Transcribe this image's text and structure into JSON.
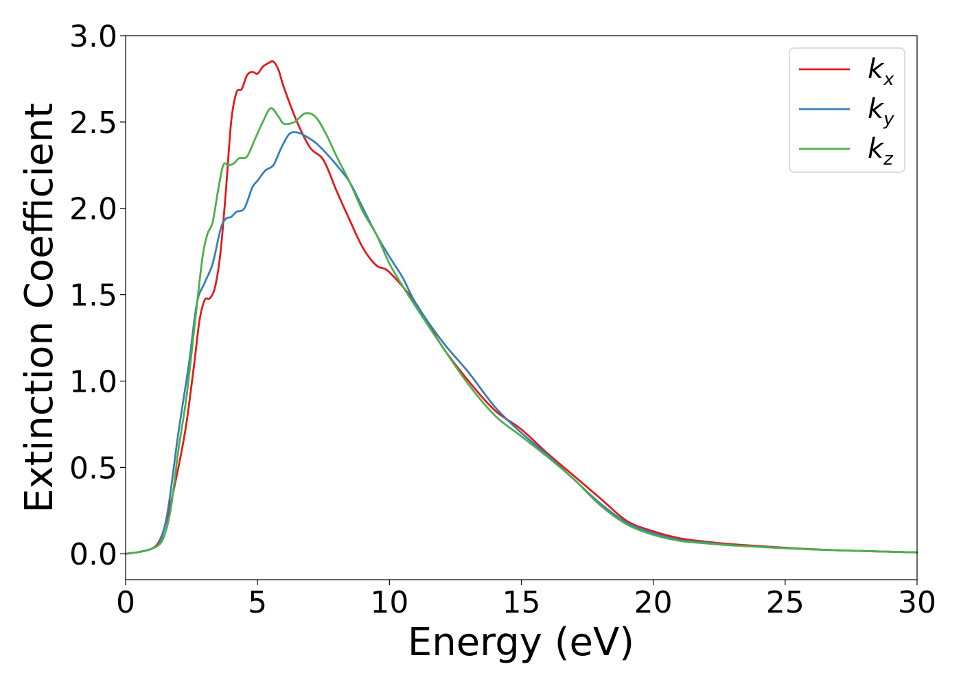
{
  "chart_data": {
    "type": "line",
    "xlabel": "Energy (eV)",
    "ylabel": "Extinction Coefficient",
    "xlim": [
      0,
      30
    ],
    "ylim": [
      -0.15,
      3.0
    ],
    "xticks": [
      "0",
      "5",
      "10",
      "15",
      "20",
      "25",
      "30"
    ],
    "yticks": [
      "0.0",
      "0.5",
      "1.0",
      "1.5",
      "2.0",
      "2.5",
      "3.0"
    ],
    "grid": false,
    "legend_position": "top-right",
    "series": [
      {
        "name": "k_x",
        "legend_base": "k",
        "legend_sub": "x",
        "color": "#e41a1c",
        "points": [
          [
            0,
            0
          ],
          [
            0.5,
            0.01
          ],
          [
            1.0,
            0.03
          ],
          [
            1.3,
            0.08
          ],
          [
            1.6,
            0.22
          ],
          [
            2.0,
            0.5
          ],
          [
            2.3,
            0.75
          ],
          [
            2.6,
            1.1
          ],
          [
            2.8,
            1.35
          ],
          [
            3.0,
            1.47
          ],
          [
            3.2,
            1.48
          ],
          [
            3.4,
            1.55
          ],
          [
            3.6,
            1.75
          ],
          [
            3.8,
            2.1
          ],
          [
            4.0,
            2.5
          ],
          [
            4.2,
            2.67
          ],
          [
            4.4,
            2.69
          ],
          [
            4.6,
            2.77
          ],
          [
            4.8,
            2.79
          ],
          [
            5.0,
            2.78
          ],
          [
            5.2,
            2.82
          ],
          [
            5.4,
            2.84
          ],
          [
            5.6,
            2.85
          ],
          [
            5.8,
            2.8
          ],
          [
            6.0,
            2.7
          ],
          [
            6.5,
            2.5
          ],
          [
            7.0,
            2.35
          ],
          [
            7.5,
            2.28
          ],
          [
            8.0,
            2.1
          ],
          [
            8.5,
            1.93
          ],
          [
            9.0,
            1.77
          ],
          [
            9.5,
            1.67
          ],
          [
            10.0,
            1.63
          ],
          [
            11.0,
            1.45
          ],
          [
            12.0,
            1.2
          ],
          [
            13.0,
            1.0
          ],
          [
            14.0,
            0.83
          ],
          [
            15.0,
            0.72
          ],
          [
            16.0,
            0.58
          ],
          [
            17.0,
            0.45
          ],
          [
            18.0,
            0.32
          ],
          [
            19.0,
            0.19
          ],
          [
            20.0,
            0.13
          ],
          [
            21.0,
            0.09
          ],
          [
            22.0,
            0.07
          ],
          [
            23.0,
            0.055
          ],
          [
            25.0,
            0.035
          ],
          [
            27.0,
            0.02
          ],
          [
            30.0,
            0.008
          ]
        ]
      },
      {
        "name": "k_y",
        "legend_base": "k",
        "legend_sub": "y",
        "color": "#377eb8",
        "points": [
          [
            0,
            0
          ],
          [
            0.5,
            0.01
          ],
          [
            1.0,
            0.03
          ],
          [
            1.3,
            0.07
          ],
          [
            1.6,
            0.25
          ],
          [
            2.0,
            0.7
          ],
          [
            2.4,
            1.1
          ],
          [
            2.7,
            1.45
          ],
          [
            3.0,
            1.57
          ],
          [
            3.3,
            1.68
          ],
          [
            3.6,
            1.88
          ],
          [
            3.8,
            1.94
          ],
          [
            4.0,
            1.95
          ],
          [
            4.2,
            1.98
          ],
          [
            4.5,
            2.0
          ],
          [
            4.8,
            2.12
          ],
          [
            5.0,
            2.16
          ],
          [
            5.3,
            2.22
          ],
          [
            5.6,
            2.25
          ],
          [
            5.9,
            2.35
          ],
          [
            6.2,
            2.43
          ],
          [
            6.5,
            2.44
          ],
          [
            6.8,
            2.42
          ],
          [
            7.2,
            2.38
          ],
          [
            7.6,
            2.32
          ],
          [
            8.0,
            2.25
          ],
          [
            8.5,
            2.15
          ],
          [
            9.0,
            2.0
          ],
          [
            9.5,
            1.85
          ],
          [
            10.0,
            1.72
          ],
          [
            10.5,
            1.6
          ],
          [
            11.0,
            1.45
          ],
          [
            12.0,
            1.23
          ],
          [
            13.0,
            1.05
          ],
          [
            14.0,
            0.85
          ],
          [
            15.0,
            0.7
          ],
          [
            16.0,
            0.57
          ],
          [
            17.0,
            0.43
          ],
          [
            18.0,
            0.29
          ],
          [
            19.0,
            0.18
          ],
          [
            20.0,
            0.12
          ],
          [
            21.0,
            0.08
          ],
          [
            22.0,
            0.065
          ],
          [
            23.0,
            0.05
          ],
          [
            25.0,
            0.033
          ],
          [
            27.0,
            0.02
          ],
          [
            30.0,
            0.008
          ]
        ]
      },
      {
        "name": "k_z",
        "legend_base": "k",
        "legend_sub": "z",
        "color": "#4daf4a",
        "points": [
          [
            0,
            0
          ],
          [
            0.5,
            0.01
          ],
          [
            1.0,
            0.03
          ],
          [
            1.4,
            0.08
          ],
          [
            1.7,
            0.25
          ],
          [
            2.0,
            0.6
          ],
          [
            2.3,
            0.9
          ],
          [
            2.6,
            1.3
          ],
          [
            2.9,
            1.7
          ],
          [
            3.1,
            1.85
          ],
          [
            3.3,
            1.92
          ],
          [
            3.5,
            2.1
          ],
          [
            3.7,
            2.25
          ],
          [
            3.9,
            2.25
          ],
          [
            4.1,
            2.26
          ],
          [
            4.3,
            2.29
          ],
          [
            4.6,
            2.3
          ],
          [
            4.9,
            2.4
          ],
          [
            5.2,
            2.5
          ],
          [
            5.5,
            2.58
          ],
          [
            5.8,
            2.53
          ],
          [
            6.0,
            2.49
          ],
          [
            6.4,
            2.5
          ],
          [
            6.8,
            2.55
          ],
          [
            7.2,
            2.53
          ],
          [
            7.6,
            2.43
          ],
          [
            8.0,
            2.3
          ],
          [
            8.5,
            2.15
          ],
          [
            9.0,
            1.98
          ],
          [
            9.5,
            1.85
          ],
          [
            10.0,
            1.68
          ],
          [
            10.5,
            1.55
          ],
          [
            11.0,
            1.43
          ],
          [
            12.0,
            1.2
          ],
          [
            13.0,
            0.98
          ],
          [
            14.0,
            0.8
          ],
          [
            15.0,
            0.68
          ],
          [
            16.0,
            0.56
          ],
          [
            17.0,
            0.43
          ],
          [
            18.0,
            0.28
          ],
          [
            19.0,
            0.17
          ],
          [
            20.0,
            0.11
          ],
          [
            21.0,
            0.075
          ],
          [
            22.0,
            0.06
          ],
          [
            23.0,
            0.048
          ],
          [
            25.0,
            0.032
          ],
          [
            27.0,
            0.02
          ],
          [
            30.0,
            0.008
          ]
        ]
      }
    ]
  }
}
